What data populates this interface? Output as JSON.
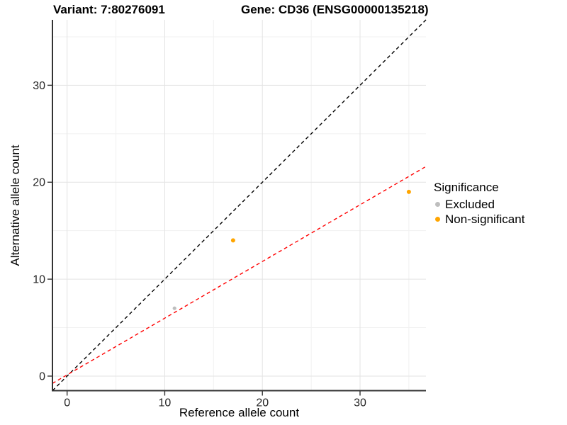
{
  "titles": {
    "variant": "Variant: 7:80276091",
    "gene": "Gene: CD36 (ENSG00000135218)"
  },
  "chart_data": {
    "type": "scatter",
    "xlabel": "Reference allele count",
    "ylabel": "Alternative allele count",
    "xlim": [
      -1.5,
      36.75
    ],
    "ylim": [
      -1.5,
      36.75
    ],
    "xticks": [
      0,
      10,
      20,
      30
    ],
    "yticks": [
      0,
      10,
      20,
      30
    ],
    "xminor": [
      5,
      15,
      25,
      35
    ],
    "yminor": [
      5,
      15,
      25,
      35
    ],
    "grid": "major+minor",
    "series": [
      {
        "name": "Excluded",
        "color": "#BEBEBE",
        "size": 2.6,
        "points": [
          [
            11,
            7
          ]
        ]
      },
      {
        "name": "Non-significant",
        "color": "#FFA500",
        "size": 3.0,
        "points": [
          [
            17,
            14
          ],
          [
            35,
            19
          ]
        ]
      }
    ],
    "lines": [
      {
        "name": "identity-line",
        "color": "#000000",
        "dash": "5 4",
        "x1": -1.5,
        "y1": -1.5,
        "x2": 36.75,
        "y2": 36.75
      },
      {
        "name": "fit-line",
        "color": "#FF0000",
        "dash": "5 4",
        "x1": -1.5,
        "y1": -0.75,
        "x2": 36.75,
        "y2": 21.62
      }
    ],
    "legend": {
      "title": "Significance",
      "position": "right",
      "items": [
        {
          "label": "Excluded",
          "color": "#BEBEBE"
        },
        {
          "label": "Non-significant",
          "color": "#FFA500"
        }
      ]
    }
  },
  "style": {
    "background": "#FFFFFF",
    "grid_major": "#E3E3E3",
    "grid_minor": "#F1F1F1",
    "axis_line": "#333333",
    "tick_color": "#333333",
    "tick_label_color": "#262626"
  }
}
